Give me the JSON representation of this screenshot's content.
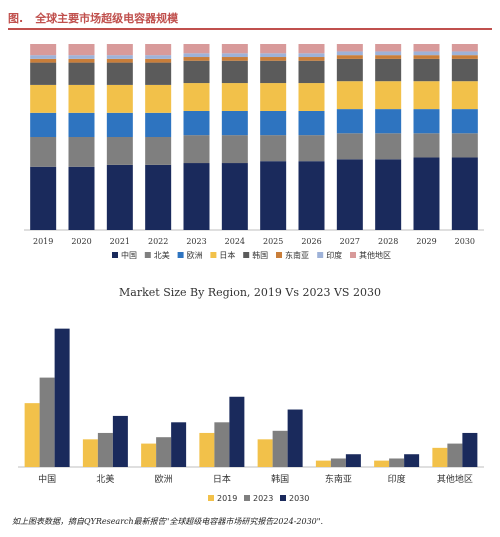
{
  "figure": {
    "label": "图.",
    "title": "全球主要市场超级电容器规模"
  },
  "chart_data": [
    {
      "type": "bar",
      "stacked": true,
      "normalized_percent": true,
      "categories": [
        "2019",
        "2020",
        "2021",
        "2022",
        "2023",
        "2024",
        "2025",
        "2026",
        "2027",
        "2028",
        "2029",
        "2030"
      ],
      "series": [
        {
          "name": "中国",
          "color": "#1a2a5c",
          "values": [
            34,
            34,
            35,
            35,
            36,
            36,
            37,
            37,
            38,
            38,
            39,
            39
          ]
        },
        {
          "name": "北美",
          "color": "#7f7f7f",
          "values": [
            16,
            16,
            15,
            15,
            15,
            15,
            14,
            14,
            14,
            14,
            13,
            13
          ]
        },
        {
          "name": "欧洲",
          "color": "#2e74c0",
          "values": [
            13,
            13,
            13,
            13,
            13,
            13,
            13,
            13,
            13,
            13,
            13,
            13
          ]
        },
        {
          "name": "日本",
          "color": "#f2c14a",
          "values": [
            15,
            15,
            15,
            15,
            15,
            15,
            15,
            15,
            15,
            15,
            15,
            15
          ]
        },
        {
          "name": "韩国",
          "color": "#5b5b5b",
          "values": [
            12,
            12,
            12,
            12,
            12,
            12,
            12,
            12,
            12,
            12,
            12,
            12
          ]
        },
        {
          "name": "东南亚",
          "color": "#c97e3a",
          "values": [
            2,
            2,
            2,
            2,
            2,
            2,
            2,
            2,
            2,
            2,
            2,
            2
          ]
        },
        {
          "name": "印度",
          "color": "#9eb2d8",
          "values": [
            2,
            2,
            2,
            2,
            2,
            2,
            2,
            2,
            2,
            2,
            2,
            2
          ]
        },
        {
          "name": "其他地区",
          "color": "#d89a9a",
          "values": [
            6,
            6,
            6,
            6,
            5,
            5,
            5,
            5,
            4,
            4,
            4,
            4
          ]
        }
      ],
      "legend_position": "bottom"
    },
    {
      "type": "bar",
      "title": "Market Size By Region, 2019 Vs 2023 VS 2030",
      "categories": [
        "中国",
        "北美",
        "欧洲",
        "日本",
        "韩国",
        "东南亚",
        "印度",
        "其他地区"
      ],
      "series": [
        {
          "name": "2019",
          "color": "#f2c14a",
          "values": [
            30,
            13,
            11,
            16,
            13,
            3,
            3,
            9
          ]
        },
        {
          "name": "2023",
          "color": "#7f7f7f",
          "values": [
            42,
            16,
            14,
            21,
            17,
            4,
            4,
            11
          ]
        },
        {
          "name": "2030",
          "color": "#1a2a5c",
          "values": [
            65,
            24,
            21,
            33,
            27,
            6,
            6,
            16
          ]
        }
      ],
      "ylim": [
        0,
        70
      ],
      "legend_position": "bottom"
    }
  ],
  "footer": {
    "source": "如上图表数据，摘自QYResearch最新报告\"全球超级电容器市场研究报告2024-2030\"."
  }
}
